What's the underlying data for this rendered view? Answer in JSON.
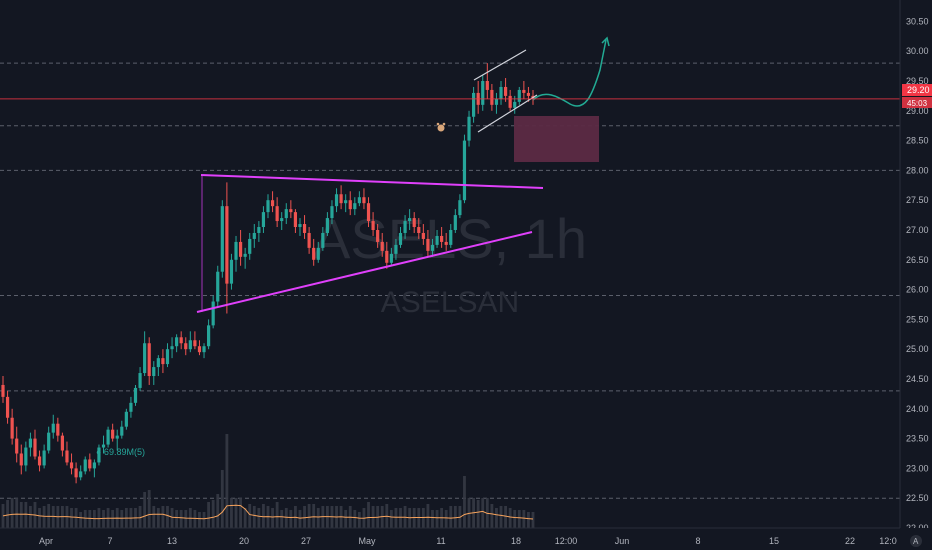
{
  "symbol": {
    "watermark": "ASELS, 1h",
    "name": "ASELSAN"
  },
  "price_axis": {
    "ticks": [
      "30.50",
      "30.00",
      "29.50",
      "29.00",
      "28.50",
      "28.00",
      "27.50",
      "27.00",
      "26.50",
      "26.00",
      "25.50",
      "25.00",
      "24.50",
      "24.00",
      "23.50",
      "23.00",
      "22.50",
      "22.00"
    ],
    "last_price": "29.20",
    "countdown": "45:03",
    "auto_label": "A"
  },
  "time_axis": {
    "labels": [
      "Apr",
      "7",
      "13",
      "20",
      "27",
      "May",
      "11",
      "18",
      "12:00",
      "Jun",
      "8",
      "15",
      "22",
      "12:0"
    ]
  },
  "overlay_label": "● 69.89M(5)",
  "colors": {
    "background": "#131722",
    "up": "#26a69a",
    "down": "#ef5350",
    "trendline": "#e040fb",
    "channel": "#d1d4dc",
    "zone": "#5c2a45",
    "last_price": "#f23645",
    "projection": "#22ab94",
    "dashed_levels": "#7a7e8a",
    "volume": "#363a45",
    "volume_ma": "#f7a35c"
  },
  "chart_data": {
    "type": "candlestick",
    "timeframe": "1h",
    "ylim": [
      22.0,
      30.6
    ],
    "horizontal_levels": [
      29.8,
      28.75,
      28.0,
      25.9,
      24.3,
      22.5
    ],
    "last_price": 29.2,
    "series": [
      {
        "name": "price",
        "values": [
          [
            24.4,
            24.55,
            24.1,
            24.2
          ],
          [
            24.2,
            24.3,
            23.75,
            23.85
          ],
          [
            23.85,
            24.0,
            23.4,
            23.5
          ],
          [
            23.5,
            23.7,
            23.1,
            23.25
          ],
          [
            23.25,
            23.4,
            22.9,
            23.05
          ],
          [
            23.05,
            23.45,
            22.95,
            23.35
          ],
          [
            23.35,
            23.6,
            23.2,
            23.5
          ],
          [
            23.5,
            23.65,
            23.15,
            23.2
          ],
          [
            23.2,
            23.3,
            22.95,
            23.05
          ],
          [
            23.05,
            23.4,
            23.0,
            23.3
          ],
          [
            23.3,
            23.7,
            23.25,
            23.6
          ],
          [
            23.6,
            23.9,
            23.5,
            23.75
          ],
          [
            23.75,
            23.85,
            23.45,
            23.55
          ],
          [
            23.55,
            23.6,
            23.2,
            23.3
          ],
          [
            23.3,
            23.45,
            23.05,
            23.1
          ],
          [
            23.1,
            23.25,
            22.9,
            23.0
          ],
          [
            23.0,
            23.1,
            22.75,
            22.85
          ],
          [
            22.85,
            23.05,
            22.8,
            22.95
          ],
          [
            22.95,
            23.2,
            22.9,
            23.15
          ],
          [
            23.15,
            23.25,
            22.95,
            23.0
          ],
          [
            23.0,
            23.15,
            22.85,
            23.1
          ],
          [
            23.1,
            23.4,
            23.05,
            23.35
          ],
          [
            23.35,
            23.55,
            23.25,
            23.4
          ],
          [
            23.4,
            23.7,
            23.35,
            23.65
          ],
          [
            23.65,
            23.75,
            23.45,
            23.5
          ],
          [
            23.5,
            23.65,
            23.3,
            23.55
          ],
          [
            23.55,
            23.8,
            23.5,
            23.7
          ],
          [
            23.7,
            24.0,
            23.65,
            23.95
          ],
          [
            23.95,
            24.2,
            23.85,
            24.1
          ],
          [
            24.1,
            24.4,
            24.05,
            24.35
          ],
          [
            24.35,
            24.7,
            24.3,
            24.6
          ],
          [
            24.6,
            25.3,
            24.55,
            25.1
          ],
          [
            25.1,
            25.2,
            24.4,
            24.55
          ],
          [
            24.55,
            24.8,
            24.4,
            24.7
          ],
          [
            24.7,
            24.9,
            24.55,
            24.85
          ],
          [
            24.85,
            25.0,
            24.6,
            24.75
          ],
          [
            24.75,
            25.1,
            24.7,
            25.0
          ],
          [
            25.0,
            25.2,
            24.85,
            25.05
          ],
          [
            25.05,
            25.25,
            24.95,
            25.2
          ],
          [
            25.2,
            25.3,
            25.0,
            25.1
          ],
          [
            25.1,
            25.2,
            24.9,
            25.0
          ],
          [
            25.0,
            25.3,
            24.95,
            25.15
          ],
          [
            25.15,
            25.3,
            25.0,
            25.05
          ],
          [
            25.05,
            25.15,
            24.9,
            24.95
          ],
          [
            24.95,
            25.1,
            24.85,
            25.05
          ],
          [
            25.05,
            25.5,
            25.0,
            25.4
          ],
          [
            25.4,
            25.9,
            25.35,
            25.8
          ],
          [
            25.8,
            26.4,
            25.7,
            26.3
          ],
          [
            26.3,
            27.5,
            26.2,
            27.4
          ],
          [
            27.4,
            27.8,
            25.6,
            26.1
          ],
          [
            26.1,
            26.6,
            26.0,
            26.5
          ],
          [
            26.5,
            26.9,
            26.3,
            26.8
          ],
          [
            26.8,
            27.0,
            26.4,
            26.55
          ],
          [
            26.55,
            26.7,
            26.35,
            26.6
          ],
          [
            26.6,
            26.95,
            26.5,
            26.85
          ],
          [
            26.85,
            27.1,
            26.7,
            26.95
          ],
          [
            26.95,
            27.15,
            26.8,
            27.05
          ],
          [
            27.05,
            27.4,
            26.95,
            27.3
          ],
          [
            27.3,
            27.6,
            27.2,
            27.5
          ],
          [
            27.5,
            27.65,
            27.3,
            27.4
          ],
          [
            27.4,
            27.55,
            27.05,
            27.15
          ],
          [
            27.15,
            27.3,
            27.0,
            27.2
          ],
          [
            27.2,
            27.45,
            27.1,
            27.35
          ],
          [
            27.35,
            27.5,
            27.2,
            27.3
          ],
          [
            27.3,
            27.35,
            26.95,
            27.05
          ],
          [
            27.05,
            27.2,
            26.9,
            27.1
          ],
          [
            27.1,
            27.25,
            26.85,
            26.95
          ],
          [
            26.95,
            27.05,
            26.6,
            26.7
          ],
          [
            26.7,
            26.85,
            26.4,
            26.5
          ],
          [
            26.5,
            26.8,
            26.45,
            26.7
          ],
          [
            26.7,
            27.05,
            26.65,
            26.95
          ],
          [
            26.95,
            27.3,
            26.9,
            27.2
          ],
          [
            27.2,
            27.5,
            27.1,
            27.4
          ],
          [
            27.4,
            27.7,
            27.3,
            27.6
          ],
          [
            27.6,
            27.75,
            27.35,
            27.45
          ],
          [
            27.45,
            27.6,
            27.3,
            27.5
          ],
          [
            27.5,
            27.65,
            27.25,
            27.35
          ],
          [
            27.35,
            27.55,
            27.25,
            27.45
          ],
          [
            27.45,
            27.65,
            27.4,
            27.55
          ],
          [
            27.55,
            27.7,
            27.35,
            27.45
          ],
          [
            27.45,
            27.55,
            27.05,
            27.15
          ],
          [
            27.15,
            27.3,
            26.9,
            27.0
          ],
          [
            27.0,
            27.1,
            26.7,
            26.8
          ],
          [
            26.8,
            26.95,
            26.55,
            26.65
          ],
          [
            26.65,
            26.8,
            26.35,
            26.45
          ],
          [
            26.45,
            26.7,
            26.4,
            26.6
          ],
          [
            26.6,
            26.85,
            26.5,
            26.75
          ],
          [
            26.75,
            27.05,
            26.7,
            26.95
          ],
          [
            26.95,
            27.25,
            26.85,
            27.15
          ],
          [
            27.15,
            27.35,
            27.0,
            27.2
          ],
          [
            27.2,
            27.3,
            26.95,
            27.05
          ],
          [
            27.05,
            27.2,
            26.85,
            26.95
          ],
          [
            26.95,
            27.1,
            26.75,
            26.85
          ],
          [
            26.85,
            27.0,
            26.55,
            26.65
          ],
          [
            26.65,
            26.85,
            26.55,
            26.75
          ],
          [
            26.75,
            27.0,
            26.7,
            26.9
          ],
          [
            26.9,
            27.05,
            26.7,
            26.8
          ],
          [
            26.8,
            26.95,
            26.65,
            26.75
          ],
          [
            26.75,
            27.1,
            26.7,
            27.0
          ],
          [
            27.0,
            27.35,
            26.95,
            27.25
          ],
          [
            27.25,
            27.6,
            27.2,
            27.5
          ],
          [
            27.5,
            28.6,
            27.45,
            28.5
          ],
          [
            28.5,
            29.0,
            28.4,
            28.9
          ],
          [
            28.9,
            29.4,
            28.8,
            29.3
          ],
          [
            29.3,
            29.5,
            28.95,
            29.1
          ],
          [
            29.1,
            29.6,
            29.0,
            29.5
          ],
          [
            29.5,
            29.8,
            29.2,
            29.35
          ],
          [
            29.35,
            29.45,
            29.0,
            29.1
          ],
          [
            29.1,
            29.3,
            28.95,
            29.2
          ],
          [
            29.2,
            29.5,
            29.1,
            29.4
          ],
          [
            29.4,
            29.55,
            29.15,
            29.25
          ],
          [
            29.25,
            29.35,
            29.0,
            29.05
          ],
          [
            29.05,
            29.25,
            28.95,
            29.15
          ],
          [
            29.15,
            29.4,
            29.1,
            29.35
          ],
          [
            29.35,
            29.5,
            29.2,
            29.3
          ],
          [
            29.3,
            29.4,
            29.15,
            29.25
          ],
          [
            29.25,
            29.35,
            29.1,
            29.2
          ]
        ]
      }
    ]
  }
}
